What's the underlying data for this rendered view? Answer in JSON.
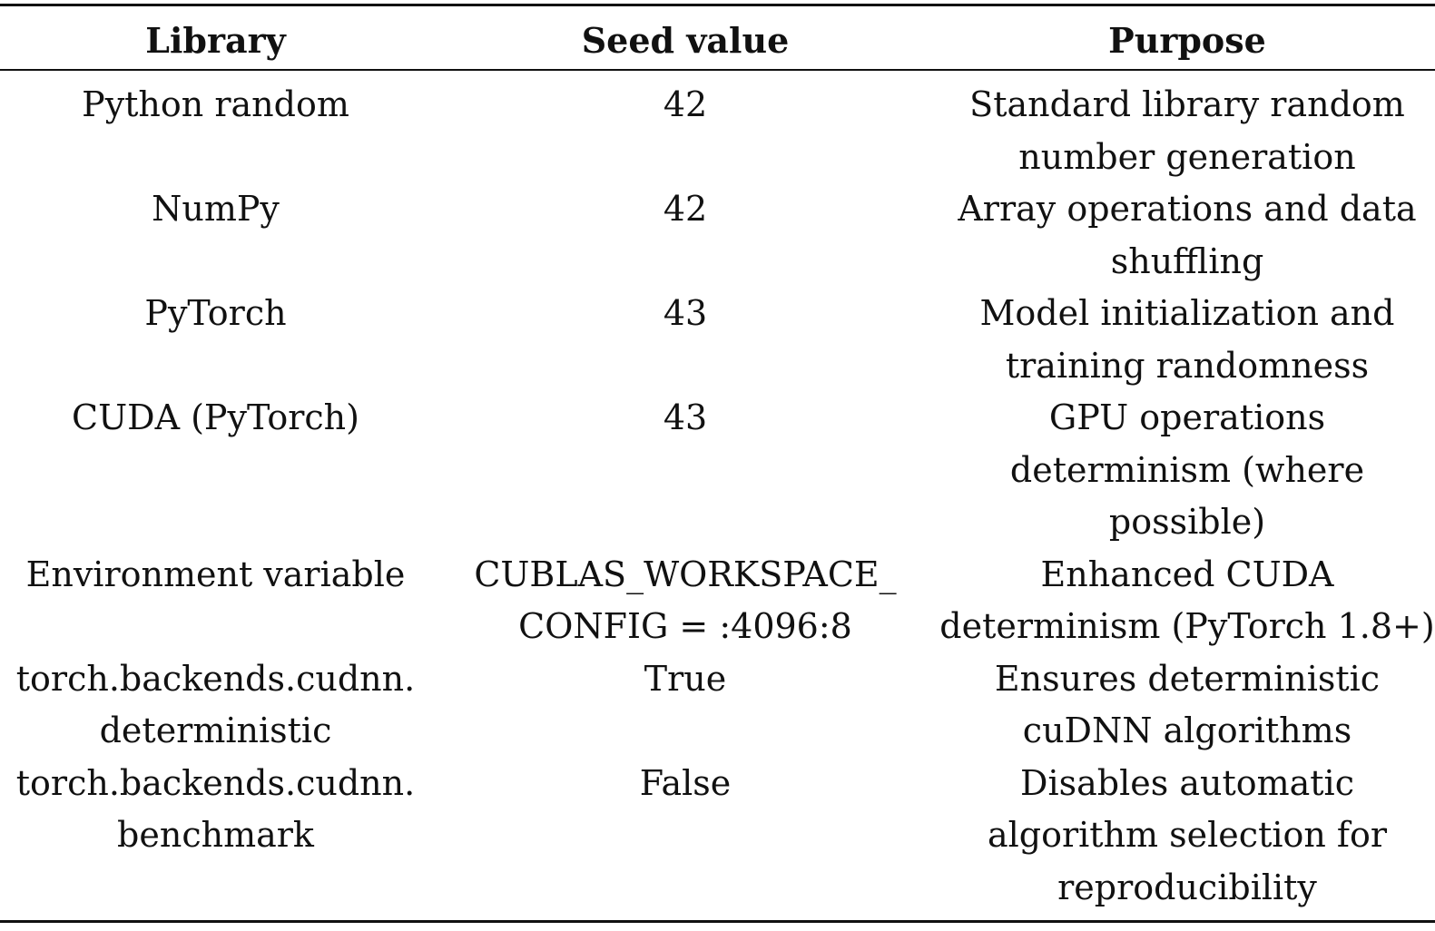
{
  "table": {
    "headers": [
      "Library",
      "Seed value",
      "Purpose"
    ],
    "rows": [
      {
        "library": [
          "Python random"
        ],
        "seed": [
          "42"
        ],
        "purpose": [
          "Standard library random",
          "number generation"
        ]
      },
      {
        "library": [
          "NumPy"
        ],
        "seed": [
          "42"
        ],
        "purpose": [
          "Array operations and data",
          "shuffling"
        ]
      },
      {
        "library": [
          "PyTorch"
        ],
        "seed": [
          "43"
        ],
        "purpose": [
          "Model initialization and",
          "training randomness"
        ]
      },
      {
        "library": [
          "CUDA (PyTorch)"
        ],
        "seed": [
          "43"
        ],
        "purpose": [
          "GPU operations",
          "determinism (where",
          "possible)"
        ]
      },
      {
        "library": [
          "Environment variable"
        ],
        "seed": [
          "CUBLAS_WORKSPACE_",
          "CONFIG = :4096:8"
        ],
        "purpose": [
          "Enhanced CUDA",
          "determinism (PyTorch 1.8+)"
        ]
      },
      {
        "library": [
          "torch.backends.cudnn.",
          "deterministic"
        ],
        "seed": [
          "True"
        ],
        "purpose": [
          "Ensures deterministic",
          "cuDNN algorithms"
        ]
      },
      {
        "library": [
          "torch.backends.cudnn.",
          "benchmark"
        ],
        "seed": [
          "False"
        ],
        "purpose": [
          "Disables automatic",
          "algorithm selection for",
          "reproducibility"
        ]
      }
    ]
  }
}
